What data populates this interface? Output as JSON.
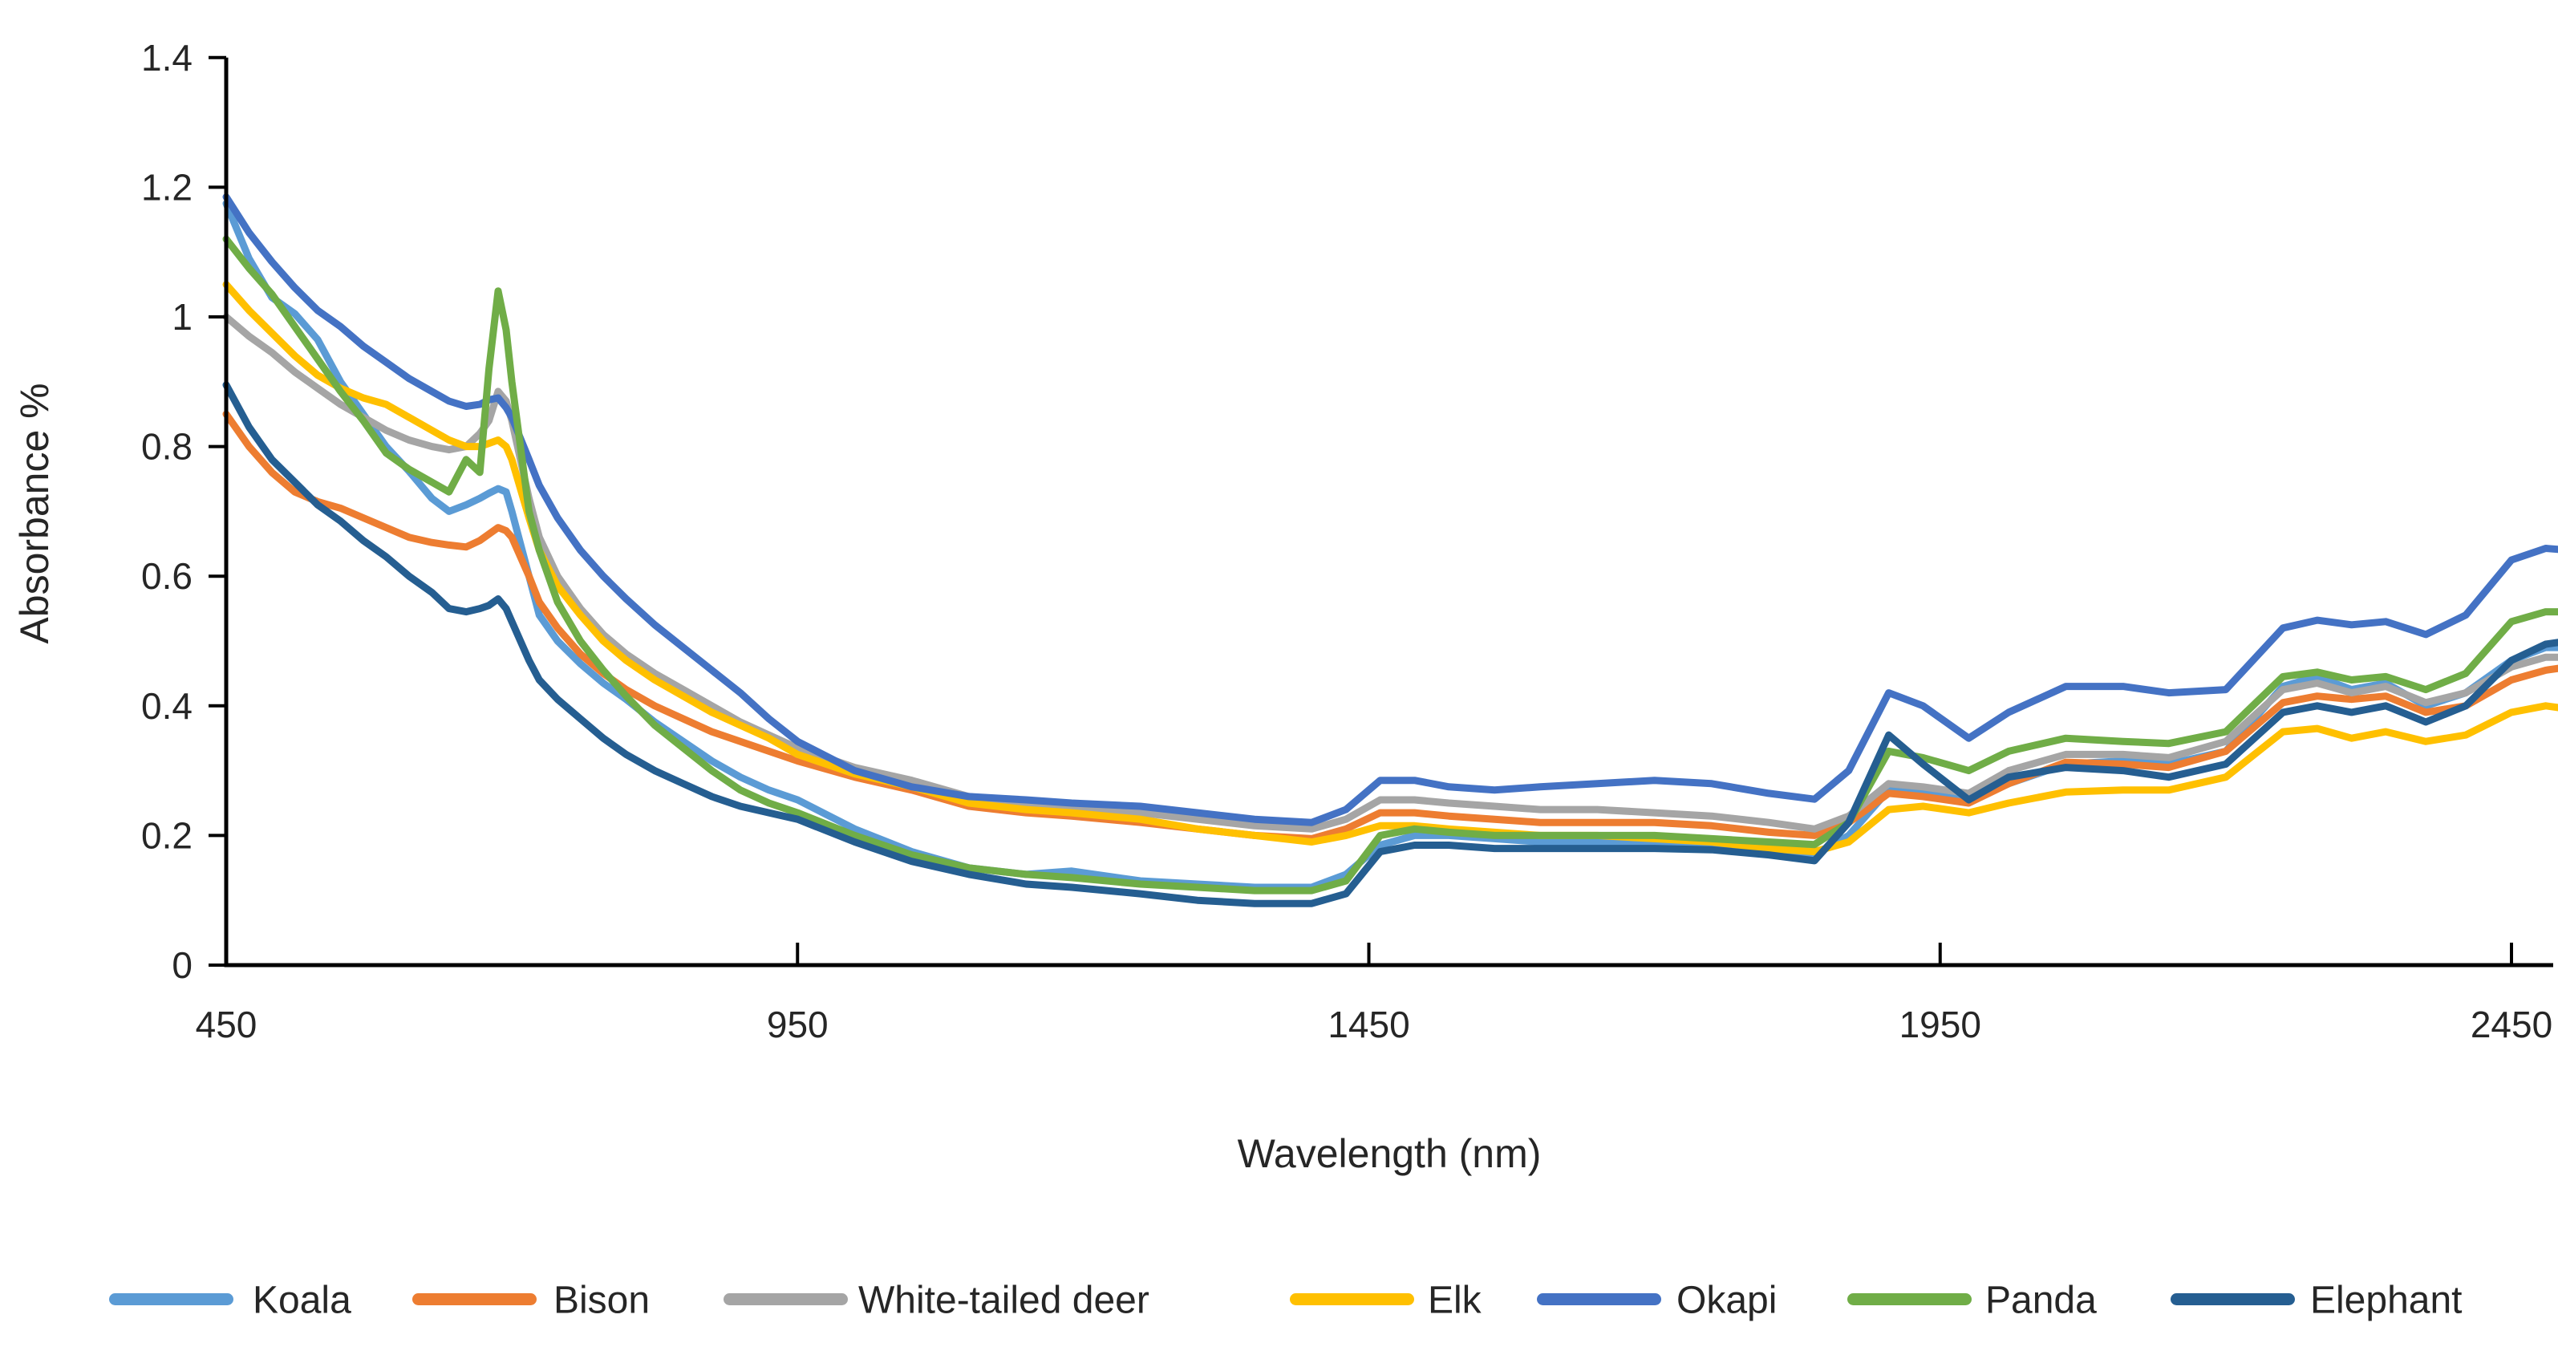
{
  "chart_data": {
    "type": "line",
    "title": "",
    "xlabel": "Wavelength (nm)",
    "ylabel": "Absorbance %",
    "xlim": [
      450,
      2500
    ],
    "ylim": [
      0,
      1.4
    ],
    "grid": false,
    "legend_position": "bottom",
    "x_ticks": [
      450,
      950,
      1450,
      1950,
      2450
    ],
    "y_ticks": [
      0,
      0.2,
      0.4,
      0.6,
      0.8,
      1,
      1.2,
      1.4
    ],
    "y_tick_labels": [
      "0",
      "0.2",
      "0.4",
      "0.6",
      "0.8",
      "1",
      "1.2",
      "1.4"
    ],
    "x": [
      450,
      470,
      490,
      510,
      530,
      550,
      570,
      590,
      610,
      630,
      645,
      660,
      672,
      680,
      688,
      695,
      700,
      715,
      724,
      740,
      760,
      780,
      800,
      825,
      850,
      875,
      900,
      925,
      950,
      1000,
      1050,
      1100,
      1150,
      1190,
      1250,
      1300,
      1350,
      1400,
      1430,
      1460,
      1490,
      1520,
      1560,
      1600,
      1650,
      1700,
      1750,
      1800,
      1840,
      1870,
      1905,
      1935,
      1975,
      2010,
      2060,
      2110,
      2150,
      2200,
      2250,
      2280,
      2310,
      2340,
      2375,
      2410,
      2450,
      2480,
      2500
    ],
    "series": [
      {
        "name": "Koala",
        "color": "#5B9BD5",
        "values": [
          1.175,
          1.09,
          1.03,
          1.005,
          0.965,
          0.9,
          0.85,
          0.8,
          0.762,
          0.72,
          0.7,
          0.71,
          0.72,
          0.728,
          0.735,
          0.73,
          0.7,
          0.6,
          0.54,
          0.5,
          0.465,
          0.435,
          0.41,
          0.375,
          0.345,
          0.315,
          0.29,
          0.27,
          0.255,
          0.21,
          0.175,
          0.15,
          0.14,
          0.145,
          0.13,
          0.125,
          0.12,
          0.12,
          0.14,
          0.185,
          0.2,
          0.2,
          0.195,
          0.19,
          0.19,
          0.19,
          0.185,
          0.175,
          0.17,
          0.2,
          0.27,
          0.265,
          0.255,
          0.28,
          0.31,
          0.315,
          0.31,
          0.33,
          0.43,
          0.445,
          0.425,
          0.435,
          0.4,
          0.42,
          0.47,
          0.49,
          0.49
        ]
      },
      {
        "name": "Bison",
        "color": "#ED7D31",
        "values": [
          0.85,
          0.8,
          0.76,
          0.73,
          0.715,
          0.705,
          0.69,
          0.675,
          0.66,
          0.652,
          0.648,
          0.645,
          0.655,
          0.665,
          0.675,
          0.67,
          0.66,
          0.6,
          0.56,
          0.52,
          0.48,
          0.45,
          0.425,
          0.4,
          0.38,
          0.36,
          0.345,
          0.33,
          0.315,
          0.29,
          0.27,
          0.245,
          0.235,
          0.23,
          0.22,
          0.21,
          0.2,
          0.195,
          0.21,
          0.235,
          0.235,
          0.23,
          0.225,
          0.22,
          0.22,
          0.22,
          0.215,
          0.205,
          0.2,
          0.22,
          0.265,
          0.26,
          0.25,
          0.28,
          0.313,
          0.31,
          0.305,
          0.33,
          0.405,
          0.415,
          0.41,
          0.415,
          0.39,
          0.4,
          0.44,
          0.455,
          0.46
        ]
      },
      {
        "name": "White-tailed deer",
        "color": "#A5A5A5",
        "values": [
          1.0,
          0.97,
          0.945,
          0.915,
          0.89,
          0.865,
          0.845,
          0.825,
          0.81,
          0.8,
          0.795,
          0.8,
          0.82,
          0.84,
          0.885,
          0.87,
          0.84,
          0.72,
          0.66,
          0.6,
          0.55,
          0.51,
          0.48,
          0.45,
          0.425,
          0.4,
          0.375,
          0.355,
          0.335,
          0.305,
          0.285,
          0.26,
          0.25,
          0.245,
          0.235,
          0.225,
          0.215,
          0.21,
          0.225,
          0.255,
          0.255,
          0.25,
          0.245,
          0.24,
          0.24,
          0.235,
          0.23,
          0.22,
          0.21,
          0.23,
          0.28,
          0.275,
          0.265,
          0.3,
          0.325,
          0.325,
          0.32,
          0.345,
          0.425,
          0.435,
          0.42,
          0.43,
          0.405,
          0.42,
          0.46,
          0.475,
          0.475
        ]
      },
      {
        "name": "Elk",
        "color": "#FFC000",
        "values": [
          1.05,
          1.01,
          0.975,
          0.94,
          0.91,
          0.89,
          0.875,
          0.865,
          0.845,
          0.825,
          0.81,
          0.8,
          0.8,
          0.805,
          0.81,
          0.8,
          0.78,
          0.69,
          0.64,
          0.585,
          0.54,
          0.5,
          0.47,
          0.44,
          0.415,
          0.39,
          0.37,
          0.35,
          0.325,
          0.295,
          0.275,
          0.25,
          0.24,
          0.235,
          0.225,
          0.21,
          0.2,
          0.19,
          0.2,
          0.215,
          0.215,
          0.21,
          0.205,
          0.2,
          0.2,
          0.195,
          0.19,
          0.18,
          0.175,
          0.19,
          0.24,
          0.245,
          0.235,
          0.25,
          0.267,
          0.27,
          0.27,
          0.29,
          0.36,
          0.365,
          0.35,
          0.36,
          0.345,
          0.355,
          0.39,
          0.4,
          0.395
        ]
      },
      {
        "name": "Okapi",
        "color": "#4472C4",
        "values": [
          1.185,
          1.13,
          1.085,
          1.045,
          1.01,
          0.985,
          0.955,
          0.93,
          0.905,
          0.885,
          0.87,
          0.862,
          0.865,
          0.872,
          0.875,
          0.86,
          0.845,
          0.78,
          0.74,
          0.69,
          0.64,
          0.6,
          0.565,
          0.525,
          0.49,
          0.455,
          0.42,
          0.38,
          0.345,
          0.3,
          0.275,
          0.26,
          0.255,
          0.25,
          0.245,
          0.235,
          0.225,
          0.22,
          0.24,
          0.285,
          0.285,
          0.275,
          0.27,
          0.275,
          0.28,
          0.285,
          0.28,
          0.265,
          0.256,
          0.3,
          0.42,
          0.4,
          0.35,
          0.39,
          0.43,
          0.43,
          0.42,
          0.425,
          0.52,
          0.532,
          0.525,
          0.53,
          0.51,
          0.54,
          0.625,
          0.643,
          0.64
        ]
      },
      {
        "name": "Panda",
        "color": "#70AD47",
        "values": [
          1.12,
          1.075,
          1.035,
          0.985,
          0.935,
          0.885,
          0.84,
          0.79,
          0.765,
          0.745,
          0.73,
          0.78,
          0.76,
          0.92,
          1.04,
          0.98,
          0.9,
          0.7,
          0.64,
          0.56,
          0.5,
          0.455,
          0.415,
          0.37,
          0.335,
          0.3,
          0.27,
          0.25,
          0.235,
          0.2,
          0.17,
          0.15,
          0.14,
          0.135,
          0.125,
          0.12,
          0.115,
          0.115,
          0.13,
          0.2,
          0.21,
          0.205,
          0.2,
          0.2,
          0.2,
          0.2,
          0.195,
          0.19,
          0.186,
          0.22,
          0.33,
          0.32,
          0.3,
          0.33,
          0.35,
          0.345,
          0.342,
          0.36,
          0.445,
          0.452,
          0.44,
          0.445,
          0.425,
          0.45,
          0.53,
          0.545,
          0.545
        ]
      },
      {
        "name": "Elephant",
        "color": "#255E91",
        "values": [
          0.895,
          0.83,
          0.78,
          0.745,
          0.71,
          0.685,
          0.655,
          0.63,
          0.6,
          0.575,
          0.55,
          0.545,
          0.55,
          0.555,
          0.565,
          0.55,
          0.53,
          0.47,
          0.44,
          0.41,
          0.38,
          0.35,
          0.325,
          0.3,
          0.28,
          0.26,
          0.245,
          0.235,
          0.225,
          0.19,
          0.16,
          0.14,
          0.125,
          0.12,
          0.11,
          0.1,
          0.095,
          0.095,
          0.11,
          0.175,
          0.185,
          0.185,
          0.18,
          0.18,
          0.18,
          0.18,
          0.178,
          0.17,
          0.161,
          0.22,
          0.355,
          0.31,
          0.255,
          0.29,
          0.305,
          0.3,
          0.29,
          0.31,
          0.39,
          0.4,
          0.39,
          0.4,
          0.375,
          0.4,
          0.47,
          0.495,
          0.5
        ]
      }
    ],
    "legend": [
      "Koala",
      "Bison",
      "White-tailed deer",
      "Elk",
      "Okapi",
      "Panda",
      "Elephant"
    ]
  },
  "axis_color": "#000000",
  "text_color": "#262626"
}
